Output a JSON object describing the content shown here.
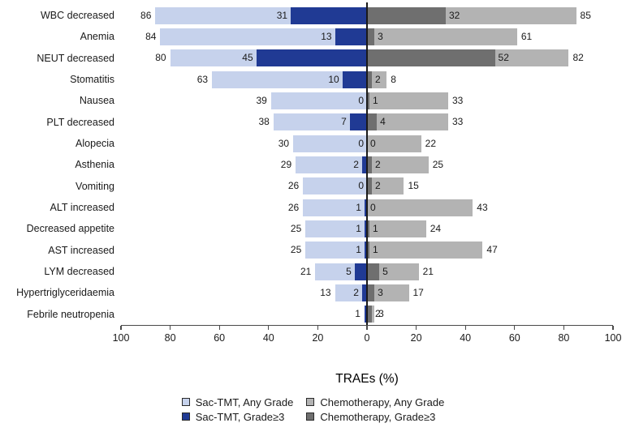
{
  "chart_data": {
    "type": "bar",
    "variant": "tornado",
    "title": "",
    "xlabel": "TRAEs (%)",
    "xlim": [
      -100,
      100
    ],
    "grid": false,
    "legend_position": "bottom",
    "axis_ticks": [
      "100",
      "80",
      "60",
      "40",
      "20",
      "0",
      "20",
      "40",
      "60",
      "80",
      "100"
    ],
    "colors": {
      "sac_any": "#c6d2ec",
      "sac_g3": "#203a94",
      "chemo_any": "#b3b3b3",
      "chemo_g3": "#6f6f6f",
      "axis": "#4a4a4a",
      "zero_line": "#1a1a1a"
    },
    "legend": [
      {
        "name": "Sac-TMT, Any Grade",
        "color_key": "sac_any"
      },
      {
        "name": "Chemotherapy, Any Grade",
        "color_key": "chemo_any"
      },
      {
        "name": "Sac-TMT, Grade≥3",
        "color_key": "sac_g3"
      },
      {
        "name": "Chemotherapy, Grade≥3",
        "color_key": "chemo_g3"
      }
    ],
    "rows": [
      {
        "category": "WBC decreased",
        "sac_any": 86,
        "sac_g3": 31,
        "chemo_g3": 32,
        "chemo_any": 85,
        "labels": {
          "sac_any": "86",
          "sac_g3": "31",
          "chemo_g3": "32",
          "chemo_any": "85"
        }
      },
      {
        "category": "Anemia",
        "sac_any": 84,
        "sac_g3": 13,
        "chemo_g3": 3,
        "chemo_any": 61,
        "labels": {
          "sac_any": "84",
          "sac_g3": "13",
          "chemo_g3": "3",
          "chemo_any": "61"
        }
      },
      {
        "category": "NEUT decreased",
        "sac_any": 80,
        "sac_g3": 45,
        "chemo_g3": 52,
        "chemo_any": 82,
        "labels": {
          "sac_any": "80",
          "sac_g3": "45",
          "chemo_g3": "52",
          "chemo_any": "82"
        }
      },
      {
        "category": "Stomatitis",
        "sac_any": 63,
        "sac_g3": 10,
        "chemo_g3": 2,
        "chemo_any": 8,
        "labels": {
          "sac_any": "63",
          "sac_g3": "10",
          "chemo_g3": "2",
          "chemo_any": "8"
        }
      },
      {
        "category": "Nausea",
        "sac_any": 39,
        "sac_g3": 0,
        "chemo_g3": 1,
        "chemo_any": 33,
        "labels": {
          "sac_any": "39",
          "sac_g3": "0",
          "chemo_g3": "1",
          "chemo_any": "33"
        }
      },
      {
        "category": "PLT decreased",
        "sac_any": 38,
        "sac_g3": 7,
        "chemo_g3": 4,
        "chemo_any": 33,
        "labels": {
          "sac_any": "38",
          "sac_g3": "7",
          "chemo_g3": "4",
          "chemo_any": "33"
        }
      },
      {
        "category": "Alopecia",
        "sac_any": 30,
        "sac_g3": 0,
        "chemo_g3": 0,
        "chemo_any": 22,
        "labels": {
          "sac_any": "30",
          "sac_g3": "0",
          "chemo_g3": "0",
          "chemo_any": "22"
        }
      },
      {
        "category": "Asthenia",
        "sac_any": 29,
        "sac_g3": 2,
        "chemo_g3": 2,
        "chemo_any": 25,
        "labels": {
          "sac_any": "29",
          "sac_g3": "2",
          "chemo_g3": "2",
          "chemo_any": "25"
        }
      },
      {
        "category": "Vomiting",
        "sac_any": 26,
        "sac_g3": 0,
        "chemo_g3": 2,
        "chemo_any": 15,
        "labels": {
          "sac_any": "26",
          "sac_g3": "0",
          "chemo_g3": "2",
          "chemo_any": "15"
        }
      },
      {
        "category": "ALT increased",
        "sac_any": 26,
        "sac_g3": 1,
        "chemo_g3": 0,
        "chemo_any": 43,
        "labels": {
          "sac_any": "26",
          "sac_g3": "1",
          "chemo_g3": "0",
          "chemo_any": "43"
        }
      },
      {
        "category": "Decreased appetite",
        "sac_any": 25,
        "sac_g3": 1,
        "chemo_g3": 1,
        "chemo_any": 24,
        "labels": {
          "sac_any": "25",
          "sac_g3": "1",
          "chemo_g3": "1",
          "chemo_any": "24"
        }
      },
      {
        "category": "AST increased",
        "sac_any": 25,
        "sac_g3": 1,
        "chemo_g3": 1,
        "chemo_any": 47,
        "labels": {
          "sac_any": "25",
          "sac_g3": "1",
          "chemo_g3": "1",
          "chemo_any": "47"
        }
      },
      {
        "category": "LYM decreased",
        "sac_any": 21,
        "sac_g3": 5,
        "chemo_g3": 5,
        "chemo_any": 21,
        "labels": {
          "sac_any": "21",
          "sac_g3": "5",
          "chemo_g3": "5",
          "chemo_any": "21"
        }
      },
      {
        "category": "Hypertriglyceridaemia",
        "sac_any": 13,
        "sac_g3": 2,
        "chemo_g3": 3,
        "chemo_any": 17,
        "labels": {
          "sac_any": "13",
          "sac_g3": "2",
          "chemo_g3": "3",
          "chemo_any": "17"
        }
      },
      {
        "category": "Febrile neutropenia",
        "sac_any": 1,
        "sac_g3": 1,
        "chemo_g3": 2,
        "chemo_any": 3,
        "labels": {
          "sac_any": "1",
          "sac_g3": "",
          "chemo_g3": "2",
          "chemo_any": "3"
        }
      }
    ]
  }
}
